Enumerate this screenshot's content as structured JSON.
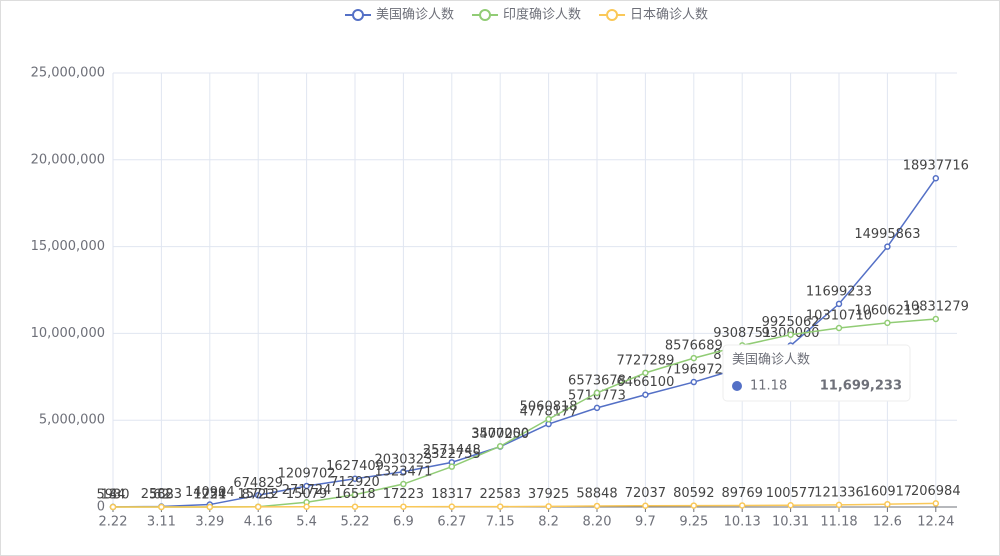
{
  "chart_data": {
    "type": "line",
    "categories": [
      "2.22",
      "3.11",
      "3.29",
      "4.16",
      "5.4",
      "5.22",
      "6.9",
      "6.27",
      "7.15",
      "8.2",
      "8.20",
      "9.7",
      "9.25",
      "10.13",
      "10.31",
      "11.18",
      "12.6",
      "12.24"
    ],
    "series": [
      {
        "name": "美国确诊人数",
        "color": "#5470c6",
        "values": [
          5930,
          25823,
          140904,
          674829,
          1209702,
          1627409,
          2030323,
          2571448,
          3477250,
          4778177,
          5710773,
          6466100,
          7196972,
          8036000,
          9300000,
          11699233,
          14995863,
          18937716
        ]
      },
      {
        "name": "印度确诊人数",
        "color": "#91cc75",
        "values": [
          3,
          62,
          1251,
          15712,
          271724,
          712920,
          1323471,
          2322755,
          3500000,
          5060818,
          6573678,
          7727289,
          8576689,
          9308751,
          9925062,
          10310710,
          10606213,
          10831279
        ]
      },
      {
        "name": "日本确诊人数",
        "color": "#fac858",
        "values": [
          144,
          568,
          1724,
          8723,
          15079,
          16518,
          17223,
          18317,
          22583,
          37925,
          58848,
          72037,
          80592,
          89769,
          100577,
          121336,
          160917,
          206984
        ]
      }
    ],
    "ylim": [
      0,
      25000000
    ],
    "yticks": [
      0,
      {
        "value": 5000000,
        "label": "5,000,000"
      },
      {
        "value": 10000000,
        "label": "10,000,000"
      },
      {
        "value": 15000000,
        "label": "15,000,000"
      },
      {
        "value": 20000000,
        "label": "20,000,000"
      },
      {
        "value": 25000000,
        "label": "25,000,000"
      }
    ],
    "grid": true,
    "legend": "top",
    "tooltip": {
      "series": "美国确诊人数",
      "category": "11.18",
      "value": "11,699,233"
    }
  }
}
